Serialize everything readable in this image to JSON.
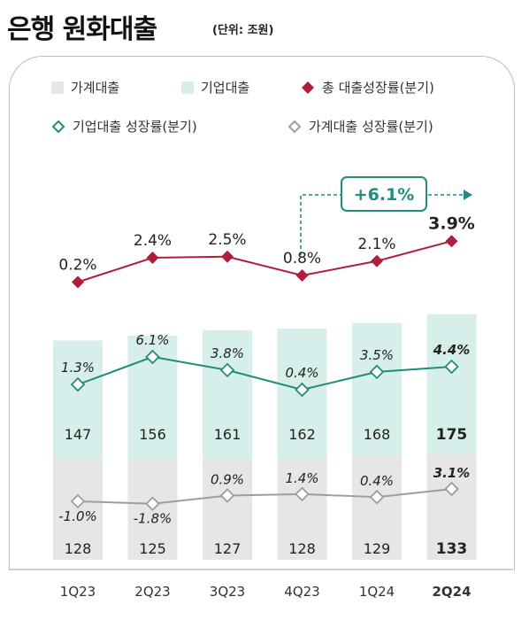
{
  "title": "은행 원화대출",
  "unit": "(단위: 조원)",
  "colors": {
    "household_bar": "#e6e6e6",
    "corporate_bar": "#d7efea",
    "total_line": "#b01e3c",
    "corporate_line": "#1f8c7d",
    "household_line": "#9e9e9e"
  },
  "legend": {
    "household": "가계대출",
    "corporate": "기업대출",
    "total": "총 대출성장률(분기)",
    "corporate_rate": "기업대출 성장률(분기)",
    "household_rate": "가계대출 성장률(분기)"
  },
  "callout": "+6.1%",
  "chart_data": {
    "type": "bar",
    "stacked": true,
    "categories": [
      "1Q23",
      "2Q23",
      "3Q23",
      "4Q23",
      "1Q24",
      "2Q24"
    ],
    "series": [
      {
        "name": "가계대출",
        "values": [
          128,
          125,
          127,
          128,
          129,
          133
        ]
      },
      {
        "name": "기업대출",
        "values": [
          147,
          156,
          161,
          162,
          168,
          175
        ]
      }
    ],
    "lines": [
      {
        "name": "총 대출성장률(분기)",
        "values": [
          0.2,
          2.4,
          2.5,
          0.8,
          2.1,
          3.9
        ],
        "labels": [
          "0.2%",
          "2.4%",
          "2.5%",
          "0.8%",
          "2.1%",
          "3.9%"
        ]
      },
      {
        "name": "기업대출 성장률(분기)",
        "values": [
          1.3,
          6.1,
          3.8,
          0.4,
          3.5,
          4.4
        ],
        "labels": [
          "1.3%",
          "6.1%",
          "3.8%",
          "0.4%",
          "3.5%",
          "4.4%"
        ]
      },
      {
        "name": "가계대출 성장률(분기)",
        "values": [
          -1.0,
          -1.8,
          0.9,
          1.4,
          0.4,
          3.1
        ],
        "labels": [
          "-1.0%",
          "-1.8%",
          "0.9%",
          "1.4%",
          "0.4%",
          "3.1%"
        ]
      }
    ]
  }
}
